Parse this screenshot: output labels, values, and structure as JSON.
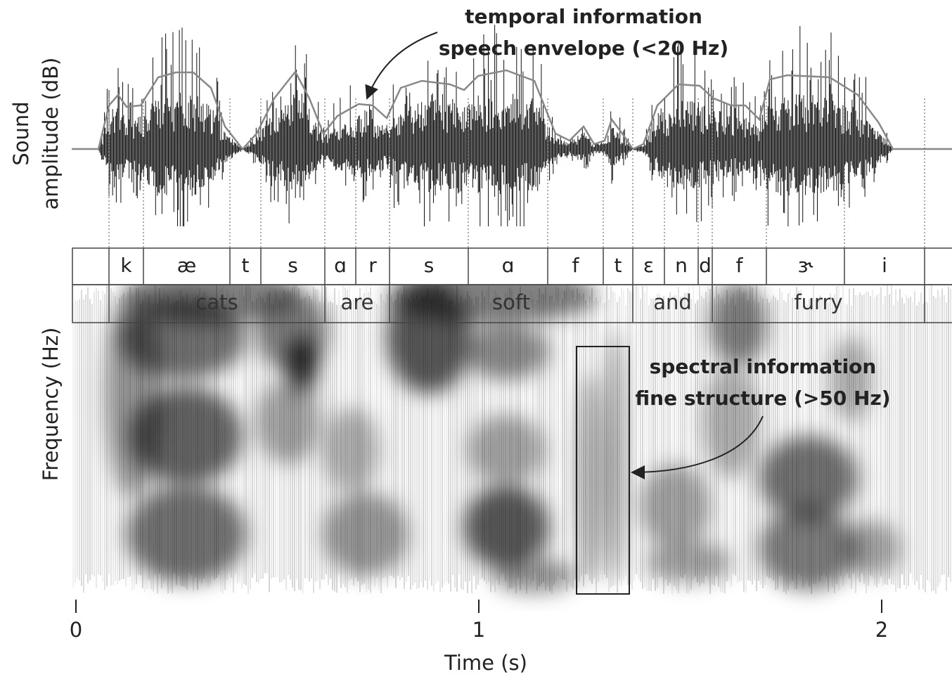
{
  "axes": {
    "y_top_label": [
      "Sound",
      "amplitude (dB)"
    ],
    "y_bottom_label": "Frequency (Hz)",
    "x_label": "Time (s)",
    "x_ticks": [
      0,
      1,
      2
    ]
  },
  "phonemes": [
    "k",
    "æ",
    "t",
    "s",
    "ɑ",
    "r",
    "s",
    "ɑ",
    "f",
    "t",
    "ɛ",
    "n",
    "d",
    "f",
    "ɝ",
    "i"
  ],
  "words": [
    "cats",
    "are",
    "soft",
    "and",
    "furry"
  ],
  "annotations": {
    "temporal": [
      "temporal information",
      "speech envelope (<20 Hz)"
    ],
    "spectral": [
      "spectral information",
      "fine structure (>50 Hz)"
    ]
  }
}
